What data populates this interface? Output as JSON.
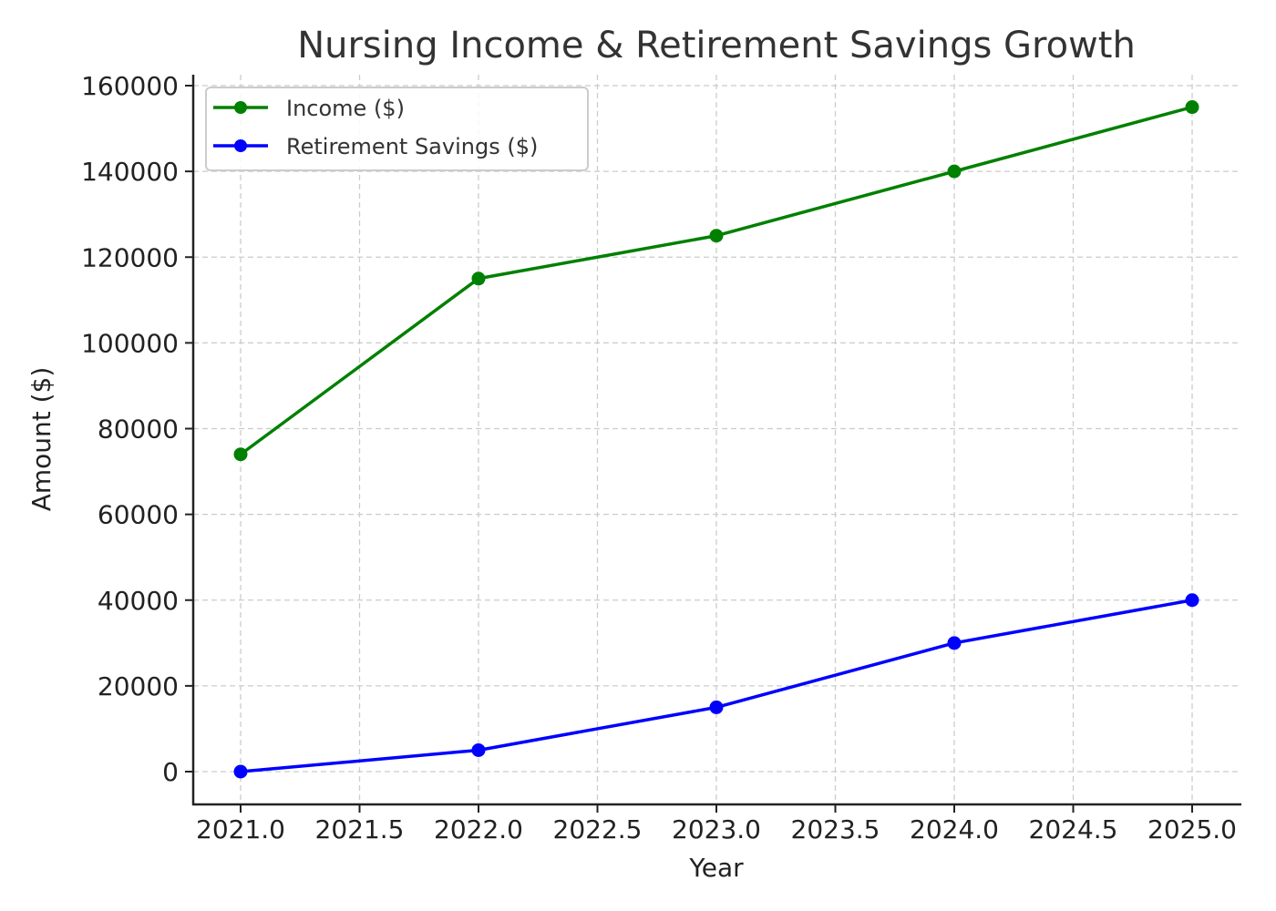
{
  "chart_data": {
    "type": "line",
    "title": "Nursing Income & Retirement Savings Growth",
    "xlabel": "Year",
    "ylabel": "Amount ($)",
    "x": [
      2021,
      2022,
      2023,
      2024,
      2025
    ],
    "series": [
      {
        "name": "Income ($)",
        "color": "#008000",
        "marker": "circle",
        "values": [
          74000,
          115000,
          125000,
          140000,
          155000
        ]
      },
      {
        "name": "Retirement Savings ($)",
        "color": "#0000ff",
        "marker": "circle",
        "values": [
          0,
          5000,
          15000,
          30000,
          40000
        ]
      }
    ],
    "xticks": [
      "2021.0",
      "2021.5",
      "2022.0",
      "2022.5",
      "2023.0",
      "2023.5",
      "2024.0",
      "2024.5",
      "2025.0"
    ],
    "xtick_values": [
      2021.0,
      2021.5,
      2022.0,
      2022.5,
      2023.0,
      2023.5,
      2024.0,
      2024.5,
      2025.0
    ],
    "yticks": [
      "0",
      "20000",
      "40000",
      "60000",
      "80000",
      "100000",
      "120000",
      "140000",
      "160000"
    ],
    "ytick_values": [
      0,
      20000,
      40000,
      60000,
      80000,
      100000,
      120000,
      140000,
      160000
    ],
    "xlim": [
      2020.8,
      2025.2
    ],
    "ylim": [
      -7750,
      162750
    ],
    "grid": true,
    "legend_position": "upper left"
  }
}
